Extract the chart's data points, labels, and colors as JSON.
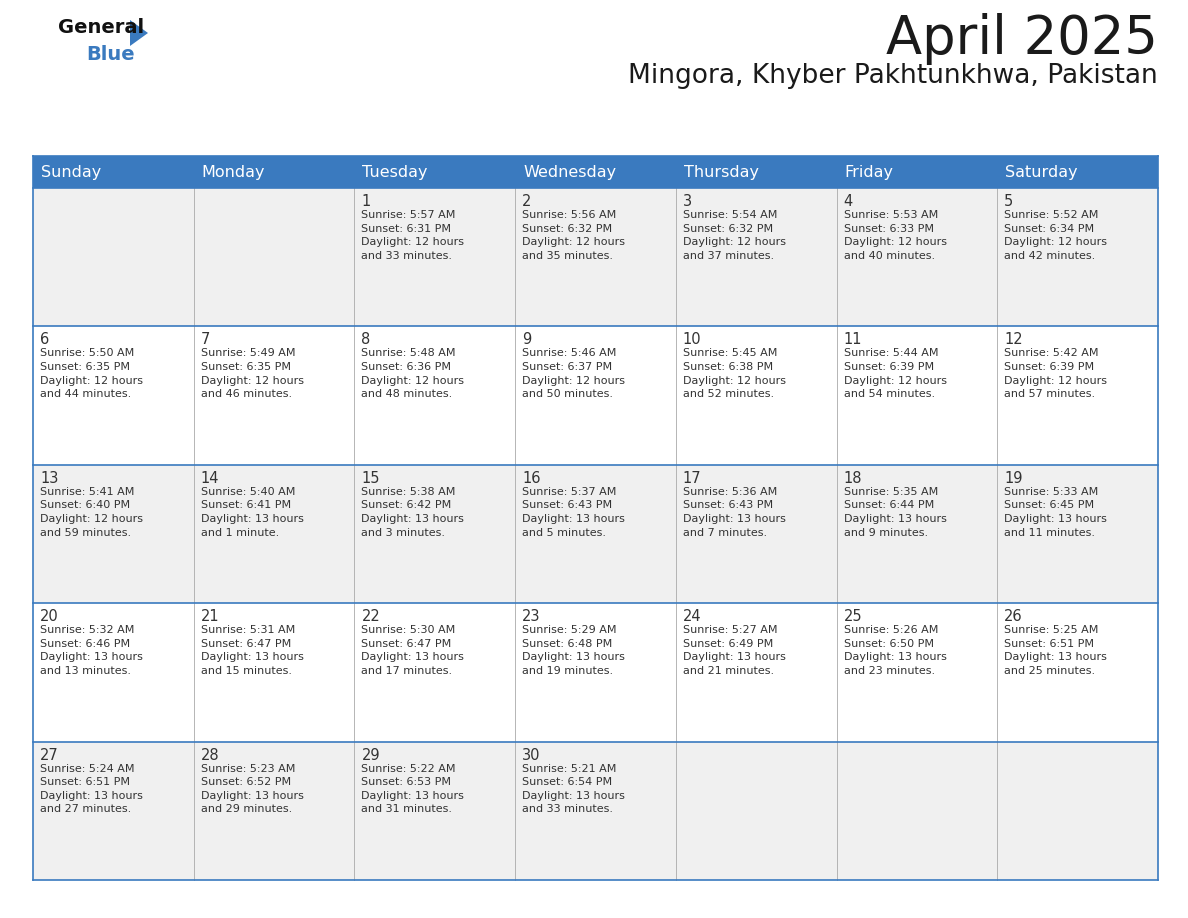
{
  "title": "April 2025",
  "subtitle": "Mingora, Khyber Pakhtunkhwa, Pakistan",
  "header_bg": "#3a7abf",
  "header_text": "#ffffff",
  "row_bg_odd": "#f0f0f0",
  "row_bg_even": "#ffffff",
  "cell_border_color": "#3a7abf",
  "col_divider_color": "#aaaaaa",
  "text_color": "#333333",
  "days_of_week": [
    "Sunday",
    "Monday",
    "Tuesday",
    "Wednesday",
    "Thursday",
    "Friday",
    "Saturday"
  ],
  "calendar": [
    [
      {
        "day": "",
        "info": ""
      },
      {
        "day": "",
        "info": ""
      },
      {
        "day": "1",
        "info": "Sunrise: 5:57 AM\nSunset: 6:31 PM\nDaylight: 12 hours\nand 33 minutes."
      },
      {
        "day": "2",
        "info": "Sunrise: 5:56 AM\nSunset: 6:32 PM\nDaylight: 12 hours\nand 35 minutes."
      },
      {
        "day": "3",
        "info": "Sunrise: 5:54 AM\nSunset: 6:32 PM\nDaylight: 12 hours\nand 37 minutes."
      },
      {
        "day": "4",
        "info": "Sunrise: 5:53 AM\nSunset: 6:33 PM\nDaylight: 12 hours\nand 40 minutes."
      },
      {
        "day": "5",
        "info": "Sunrise: 5:52 AM\nSunset: 6:34 PM\nDaylight: 12 hours\nand 42 minutes."
      }
    ],
    [
      {
        "day": "6",
        "info": "Sunrise: 5:50 AM\nSunset: 6:35 PM\nDaylight: 12 hours\nand 44 minutes."
      },
      {
        "day": "7",
        "info": "Sunrise: 5:49 AM\nSunset: 6:35 PM\nDaylight: 12 hours\nand 46 minutes."
      },
      {
        "day": "8",
        "info": "Sunrise: 5:48 AM\nSunset: 6:36 PM\nDaylight: 12 hours\nand 48 minutes."
      },
      {
        "day": "9",
        "info": "Sunrise: 5:46 AM\nSunset: 6:37 PM\nDaylight: 12 hours\nand 50 minutes."
      },
      {
        "day": "10",
        "info": "Sunrise: 5:45 AM\nSunset: 6:38 PM\nDaylight: 12 hours\nand 52 minutes."
      },
      {
        "day": "11",
        "info": "Sunrise: 5:44 AM\nSunset: 6:39 PM\nDaylight: 12 hours\nand 54 minutes."
      },
      {
        "day": "12",
        "info": "Sunrise: 5:42 AM\nSunset: 6:39 PM\nDaylight: 12 hours\nand 57 minutes."
      }
    ],
    [
      {
        "day": "13",
        "info": "Sunrise: 5:41 AM\nSunset: 6:40 PM\nDaylight: 12 hours\nand 59 minutes."
      },
      {
        "day": "14",
        "info": "Sunrise: 5:40 AM\nSunset: 6:41 PM\nDaylight: 13 hours\nand 1 minute."
      },
      {
        "day": "15",
        "info": "Sunrise: 5:38 AM\nSunset: 6:42 PM\nDaylight: 13 hours\nand 3 minutes."
      },
      {
        "day": "16",
        "info": "Sunrise: 5:37 AM\nSunset: 6:43 PM\nDaylight: 13 hours\nand 5 minutes."
      },
      {
        "day": "17",
        "info": "Sunrise: 5:36 AM\nSunset: 6:43 PM\nDaylight: 13 hours\nand 7 minutes."
      },
      {
        "day": "18",
        "info": "Sunrise: 5:35 AM\nSunset: 6:44 PM\nDaylight: 13 hours\nand 9 minutes."
      },
      {
        "day": "19",
        "info": "Sunrise: 5:33 AM\nSunset: 6:45 PM\nDaylight: 13 hours\nand 11 minutes."
      }
    ],
    [
      {
        "day": "20",
        "info": "Sunrise: 5:32 AM\nSunset: 6:46 PM\nDaylight: 13 hours\nand 13 minutes."
      },
      {
        "day": "21",
        "info": "Sunrise: 5:31 AM\nSunset: 6:47 PM\nDaylight: 13 hours\nand 15 minutes."
      },
      {
        "day": "22",
        "info": "Sunrise: 5:30 AM\nSunset: 6:47 PM\nDaylight: 13 hours\nand 17 minutes."
      },
      {
        "day": "23",
        "info": "Sunrise: 5:29 AM\nSunset: 6:48 PM\nDaylight: 13 hours\nand 19 minutes."
      },
      {
        "day": "24",
        "info": "Sunrise: 5:27 AM\nSunset: 6:49 PM\nDaylight: 13 hours\nand 21 minutes."
      },
      {
        "day": "25",
        "info": "Sunrise: 5:26 AM\nSunset: 6:50 PM\nDaylight: 13 hours\nand 23 minutes."
      },
      {
        "day": "26",
        "info": "Sunrise: 5:25 AM\nSunset: 6:51 PM\nDaylight: 13 hours\nand 25 minutes."
      }
    ],
    [
      {
        "day": "27",
        "info": "Sunrise: 5:24 AM\nSunset: 6:51 PM\nDaylight: 13 hours\nand 27 minutes."
      },
      {
        "day": "28",
        "info": "Sunrise: 5:23 AM\nSunset: 6:52 PM\nDaylight: 13 hours\nand 29 minutes."
      },
      {
        "day": "29",
        "info": "Sunrise: 5:22 AM\nSunset: 6:53 PM\nDaylight: 13 hours\nand 31 minutes."
      },
      {
        "day": "30",
        "info": "Sunrise: 5:21 AM\nSunset: 6:54 PM\nDaylight: 13 hours\nand 33 minutes."
      },
      {
        "day": "",
        "info": ""
      },
      {
        "day": "",
        "info": ""
      },
      {
        "day": "",
        "info": ""
      }
    ]
  ],
  "title_fontsize": 38,
  "subtitle_fontsize": 19,
  "header_fontsize": 11.5,
  "day_num_fontsize": 10.5,
  "cell_text_fontsize": 8.0,
  "logo_general_fontsize": 14,
  "logo_blue_fontsize": 14,
  "logo_triangle_color": "#3a7abf",
  "logo_general_color": "#111111",
  "logo_blue_color": "#3a7abf"
}
